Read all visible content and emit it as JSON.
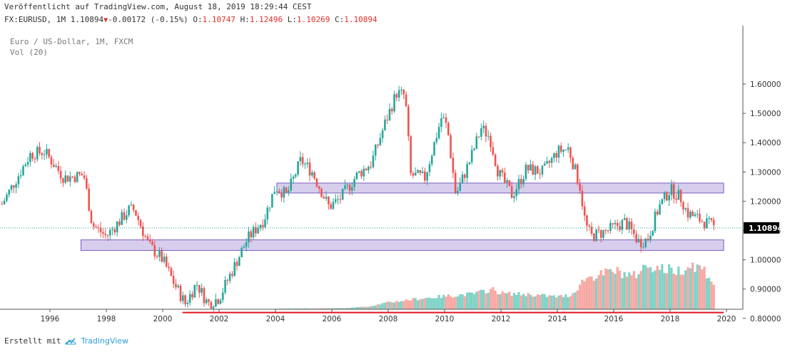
{
  "header": {
    "published": "Veröffentlicht auf TradingView.com, August 18, 2019 18:29:44 CEST",
    "symbol": "FX:EURUSD, 1M",
    "last": "1.10894",
    "change": "-0.00172 (-0.15%)",
    "o_label": "O:",
    "o_value": "1.10747",
    "h_label": "H:",
    "h_value": "1.12496",
    "l_label": "L:",
    "l_value": "1.10269",
    "c_label": "C:",
    "c_value": "1.10894"
  },
  "legend": {
    "title": "Euro / US-Dollar, 1M, FXCM",
    "volume": "Vol (20)"
  },
  "footer": {
    "prefix": "Erstellt mit",
    "brand": "TradingView",
    "logo_icon": "tradingview-cloud-icon"
  },
  "chart_data": {
    "type": "candlestick",
    "interval": "1M",
    "x_range": [
      1994.2,
      2020.2
    ],
    "y_range": [
      0.75,
      1.68
    ],
    "y_ticks": [
      "1.60000",
      "1.50000",
      "1.40000",
      "1.30000",
      "1.20000",
      "1.10000",
      "1.00000",
      "0.90000",
      "0.80000"
    ],
    "x_ticks": [
      "1996",
      "1998",
      "2000",
      "2002",
      "2004",
      "2006",
      "2008",
      "2010",
      "2012",
      "2014",
      "2016",
      "2018",
      "2020"
    ],
    "last_price_label": "1.10894",
    "last_price": 1.10894,
    "colors": {
      "up": "#26a69a",
      "down": "#ef5350",
      "zone_fill": "#c9bde8",
      "zone_border": "#7b5ec0",
      "support_line": "#e8131a",
      "volume_up": "#7fd3c6",
      "volume_down": "#f7a8a4",
      "price_line": "#26a69a",
      "last_label_bg": "#000000"
    },
    "zones": [
      {
        "x0": 2004.05,
        "x1": 2019.9,
        "y0": 1.228,
        "y1": 1.262
      },
      {
        "x0": 1997.1,
        "x1": 2019.9,
        "y0": 1.032,
        "y1": 1.068
      }
    ],
    "support_line": {
      "x0": 2000.7,
      "x1": 2019.9,
      "y": 0.82
    },
    "price_anchors": [
      [
        1994.3,
        1.19
      ],
      [
        1995.3,
        1.36
      ],
      [
        1995.8,
        1.37
      ],
      [
        1996.5,
        1.28
      ],
      [
        1997.2,
        1.29
      ],
      [
        1997.5,
        1.12
      ],
      [
        1998.0,
        1.08
      ],
      [
        1998.8,
        1.17
      ],
      [
        1999.0,
        1.17
      ],
      [
        1999.5,
        1.05
      ],
      [
        2000.0,
        1.0
      ],
      [
        2000.4,
        0.92
      ],
      [
        2000.8,
        0.85
      ],
      [
        2001.2,
        0.92
      ],
      [
        2001.6,
        0.85
      ],
      [
        2002.0,
        0.87
      ],
      [
        2002.6,
        0.99
      ],
      [
        2003.0,
        1.07
      ],
      [
        2003.6,
        1.14
      ],
      [
        2004.0,
        1.25
      ],
      [
        2004.4,
        1.22
      ],
      [
        2004.9,
        1.34
      ],
      [
        2005.3,
        1.3
      ],
      [
        2005.9,
        1.18
      ],
      [
        2006.3,
        1.21
      ],
      [
        2006.9,
        1.29
      ],
      [
        2007.4,
        1.33
      ],
      [
        2007.9,
        1.47
      ],
      [
        2008.3,
        1.57
      ],
      [
        2008.6,
        1.56
      ],
      [
        2008.8,
        1.29
      ],
      [
        2009.3,
        1.28
      ],
      [
        2009.9,
        1.49
      ],
      [
        2010.1,
        1.45
      ],
      [
        2010.4,
        1.22
      ],
      [
        2010.9,
        1.34
      ],
      [
        2011.3,
        1.45
      ],
      [
        2011.6,
        1.42
      ],
      [
        2011.9,
        1.3
      ],
      [
        2012.4,
        1.22
      ],
      [
        2012.9,
        1.31
      ],
      [
        2013.5,
        1.3
      ],
      [
        2014.0,
        1.37
      ],
      [
        2014.4,
        1.38
      ],
      [
        2014.8,
        1.25
      ],
      [
        2015.0,
        1.12
      ],
      [
        2015.2,
        1.08
      ],
      [
        2015.8,
        1.1
      ],
      [
        2016.4,
        1.13
      ],
      [
        2016.9,
        1.06
      ],
      [
        2017.2,
        1.07
      ],
      [
        2017.6,
        1.18
      ],
      [
        2018.0,
        1.24
      ],
      [
        2018.4,
        1.21
      ],
      [
        2018.6,
        1.16
      ],
      [
        2019.0,
        1.14
      ],
      [
        2019.4,
        1.12
      ],
      [
        2019.6,
        1.109
      ]
    ],
    "volume_anchors": [
      [
        1994.3,
        0
      ],
      [
        2003.9,
        0
      ],
      [
        2004.0,
        0.01
      ],
      [
        2006.5,
        0.02
      ],
      [
        2007.3,
        0.05
      ],
      [
        2008.0,
        0.12
      ],
      [
        2009.0,
        0.18
      ],
      [
        2010.0,
        0.23
      ],
      [
        2011.0,
        0.27
      ],
      [
        2011.7,
        0.35
      ],
      [
        2012.0,
        0.28
      ],
      [
        2013.0,
        0.26
      ],
      [
        2014.0,
        0.22
      ],
      [
        2014.5,
        0.25
      ],
      [
        2015.0,
        0.55
      ],
      [
        2015.5,
        0.6
      ],
      [
        2016.0,
        0.68
      ],
      [
        2016.7,
        0.58
      ],
      [
        2017.2,
        0.78
      ],
      [
        2017.8,
        0.7
      ],
      [
        2018.3,
        0.68
      ],
      [
        2018.8,
        0.78
      ],
      [
        2019.2,
        0.7
      ],
      [
        2019.6,
        0.42
      ]
    ]
  }
}
